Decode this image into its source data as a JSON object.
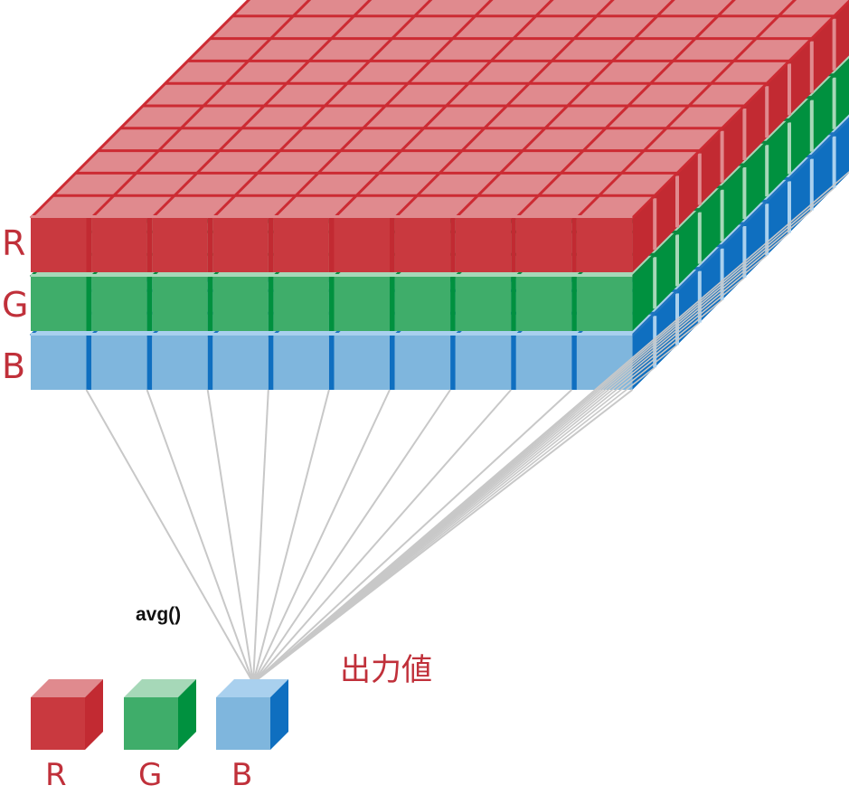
{
  "grid": {
    "rows": 10,
    "cols": 10
  },
  "layers": [
    {
      "key": "R",
      "label": "R",
      "front": "#c9393f",
      "top": "#e08a8e",
      "side": "#c22a32",
      "line": "#cc2b33"
    },
    {
      "key": "G",
      "label": "G",
      "front": "#3fad6a",
      "top": "#a6d8b8",
      "side": "#00913f",
      "line": "#0b8a40"
    },
    {
      "key": "B",
      "label": "B",
      "front": "#7fb6dd",
      "top": "#a9d0ee",
      "side": "#0f6fc0",
      "line": "#1f74bf"
    }
  ],
  "label_color": "#c0303a",
  "function_label": "avg()",
  "output_label": "出力値",
  "output_cubes": [
    {
      "key": "R",
      "label": "R"
    },
    {
      "key": "G",
      "label": "G"
    },
    {
      "key": "B",
      "label": "B"
    }
  ],
  "connector_color": "#c8c8c8"
}
